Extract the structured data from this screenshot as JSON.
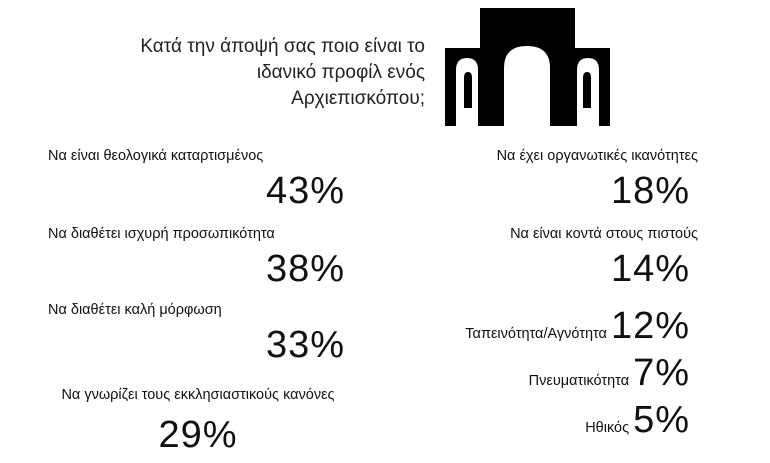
{
  "question": "Κατά την άποψή σας ποιο είναι το ιδανικό προφίλ ενός Αρχιεπισκόπου;",
  "left": [
    {
      "label": "Να είναι θεολογικά καταρτισμένος",
      "value": "43%"
    },
    {
      "label": "Να διαθέτει ισχυρή προσωπικότητα",
      "value": "38%"
    },
    {
      "label": "Να διαθέτει καλή μόρφωση",
      "value": "33%"
    },
    {
      "label": "Να γνωρίζει τους εκκλησιαστικούς κανόνες",
      "value": "29%"
    }
  ],
  "right": [
    {
      "label": "Να έχει οργανωτικές ικανότητες",
      "value": "18%"
    },
    {
      "label": "Να είναι κοντά στους πιστούς",
      "value": "14%"
    },
    {
      "label": "Ταπεινότητα/Αγνότητα",
      "value": "12%"
    },
    {
      "label": "Πνευματικότητα",
      "value": "7%"
    },
    {
      "label": "Ηθικός",
      "value": "5%"
    }
  ]
}
